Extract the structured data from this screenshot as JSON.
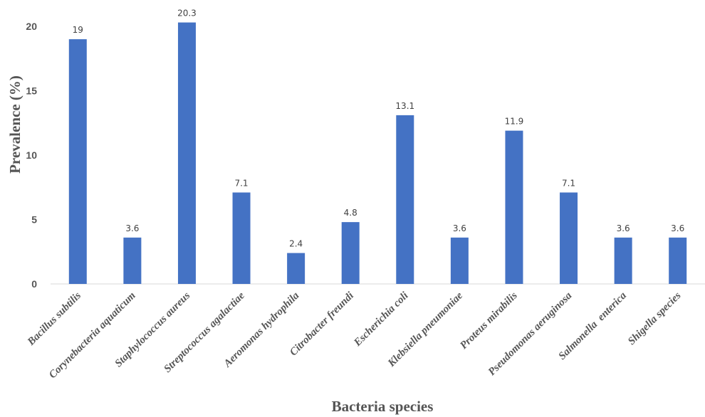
{
  "chart_data": {
    "type": "bar",
    "xlabel": "Bacteria species",
    "ylabel": "Prevalence (%)",
    "ylim": [
      0,
      20
    ],
    "yticks": [
      0,
      5,
      10,
      15,
      20
    ],
    "grid": false,
    "bar_color": "#4472C4",
    "categories": [
      "Bacillus subtilis",
      "Corynebacteria aquaticum",
      "Staphylococcus aureus",
      "Streptococcus agalactiae",
      "Aeromonas hydrophila",
      "Citrobacter freundi",
      "Escherichia coli",
      "Klebsiella pneumoniae",
      "Proteus mirabilis",
      "Pseudomonas aeruginosa",
      "Salmonella  enterica",
      "Shigella species"
    ],
    "values": [
      19,
      3.6,
      20.3,
      7.1,
      2.4,
      4.8,
      13.1,
      3.6,
      11.9,
      7.1,
      3.6,
      3.6
    ],
    "data_labels": [
      "19",
      "3.6",
      "20.3",
      "7.1",
      "2.4",
      "4.8",
      "13.1",
      "3.6",
      "11.9",
      "7.1",
      "3.6",
      "3.6"
    ]
  }
}
